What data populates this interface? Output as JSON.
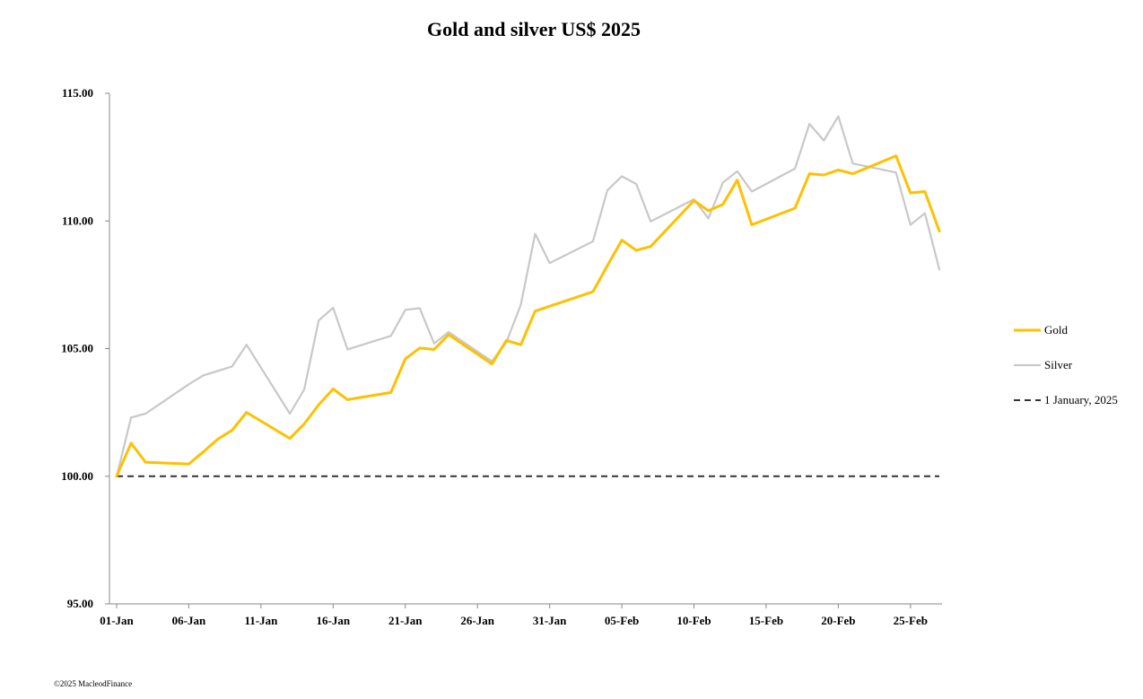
{
  "chart_data": {
    "type": "line",
    "title": "Gold and silver  US$ 2025",
    "xlabel": "",
    "ylabel": "",
    "ylim": [
      95,
      115
    ],
    "yticks": [
      "95.00",
      "100.00",
      "105.00",
      "110.00",
      "115.00"
    ],
    "xtick_labels": [
      "01-Jan",
      "06-Jan",
      "11-Jan",
      "16-Jan",
      "21-Jan",
      "26-Jan",
      "31-Jan",
      "05-Feb",
      "10-Feb",
      "15-Feb",
      "20-Feb",
      "25-Feb"
    ],
    "x_start": "01-Jan",
    "x_end": "27-Feb",
    "grid": false,
    "legend_position": "right",
    "series": [
      {
        "name": "Gold",
        "color": "#FFC000",
        "points": [
          [
            "01-Jan",
            100.0
          ],
          [
            "02-Jan",
            101.3
          ],
          [
            "03-Jan",
            100.55
          ],
          [
            "06-Jan",
            100.48
          ],
          [
            "07-Jan",
            100.95
          ],
          [
            "08-Jan",
            101.45
          ],
          [
            "09-Jan",
            101.8
          ],
          [
            "10-Jan",
            102.5
          ],
          [
            "13-Jan",
            101.48
          ],
          [
            "14-Jan",
            102.05
          ],
          [
            "15-Jan",
            102.8
          ],
          [
            "16-Jan",
            103.42
          ],
          [
            "17-Jan",
            103.0
          ],
          [
            "20-Jan",
            103.28
          ],
          [
            "21-Jan",
            104.6
          ],
          [
            "22-Jan",
            105.02
          ],
          [
            "23-Jan",
            104.97
          ],
          [
            "24-Jan",
            105.55
          ],
          [
            "27-Jan",
            104.4
          ],
          [
            "28-Jan",
            105.32
          ],
          [
            "29-Jan",
            105.15
          ],
          [
            "30-Jan",
            106.47
          ],
          [
            "03-Feb",
            107.23
          ],
          [
            "04-Feb",
            108.25
          ],
          [
            "05-Feb",
            109.25
          ],
          [
            "06-Feb",
            108.85
          ],
          [
            "07-Feb",
            109.0
          ],
          [
            "10-Feb",
            110.8
          ],
          [
            "11-Feb",
            110.4
          ],
          [
            "12-Feb",
            110.65
          ],
          [
            "13-Feb",
            111.6
          ],
          [
            "14-Feb",
            109.85
          ],
          [
            "17-Feb",
            110.5
          ],
          [
            "18-Feb",
            111.85
          ],
          [
            "19-Feb",
            111.8
          ],
          [
            "20-Feb",
            112.0
          ],
          [
            "21-Feb",
            111.85
          ],
          [
            "24-Feb",
            112.55
          ],
          [
            "25-Feb",
            111.1
          ],
          [
            "26-Feb",
            111.15
          ],
          [
            "27-Feb",
            109.6
          ]
        ]
      },
      {
        "name": "Silver",
        "color": "#C8C8C8",
        "points": [
          [
            "01-Jan",
            100.0
          ],
          [
            "02-Jan",
            102.3
          ],
          [
            "03-Jan",
            102.45
          ],
          [
            "06-Jan",
            103.6
          ],
          [
            "07-Jan",
            103.95
          ],
          [
            "09-Jan",
            104.3
          ],
          [
            "10-Jan",
            105.15
          ],
          [
            "13-Jan",
            102.45
          ],
          [
            "14-Jan",
            103.4
          ],
          [
            "15-Jan",
            106.1
          ],
          [
            "16-Jan",
            106.6
          ],
          [
            "17-Jan",
            104.97
          ],
          [
            "20-Jan",
            105.5
          ],
          [
            "21-Jan",
            106.52
          ],
          [
            "22-Jan",
            106.58
          ],
          [
            "23-Jan",
            105.2
          ],
          [
            "24-Jan",
            105.65
          ],
          [
            "27-Jan",
            104.5
          ],
          [
            "28-Jan",
            105.25
          ],
          [
            "29-Jan",
            106.72
          ],
          [
            "30-Jan",
            109.5
          ],
          [
            "31-Jan",
            108.35
          ],
          [
            "03-Feb",
            109.2
          ],
          [
            "04-Feb",
            111.2
          ],
          [
            "05-Feb",
            111.75
          ],
          [
            "06-Feb",
            111.45
          ],
          [
            "07-Feb",
            109.98
          ],
          [
            "10-Feb",
            110.85
          ],
          [
            "11-Feb",
            110.1
          ],
          [
            "12-Feb",
            111.5
          ],
          [
            "13-Feb",
            111.95
          ],
          [
            "14-Feb",
            111.15
          ],
          [
            "17-Feb",
            112.05
          ],
          [
            "18-Feb",
            113.8
          ],
          [
            "19-Feb",
            113.15
          ],
          [
            "20-Feb",
            114.1
          ],
          [
            "21-Feb",
            112.25
          ],
          [
            "24-Feb",
            111.9
          ],
          [
            "25-Feb",
            109.85
          ],
          [
            "26-Feb",
            110.3
          ],
          [
            "27-Feb",
            108.1
          ]
        ]
      },
      {
        "name": "1 January, 2025",
        "color": "#333333",
        "dashed": true,
        "points": [
          [
            "01-Jan",
            100.0
          ],
          [
            "27-Feb",
            100.0
          ]
        ]
      }
    ]
  },
  "footer": {
    "copyright": "©2025 MacleodFinance"
  }
}
